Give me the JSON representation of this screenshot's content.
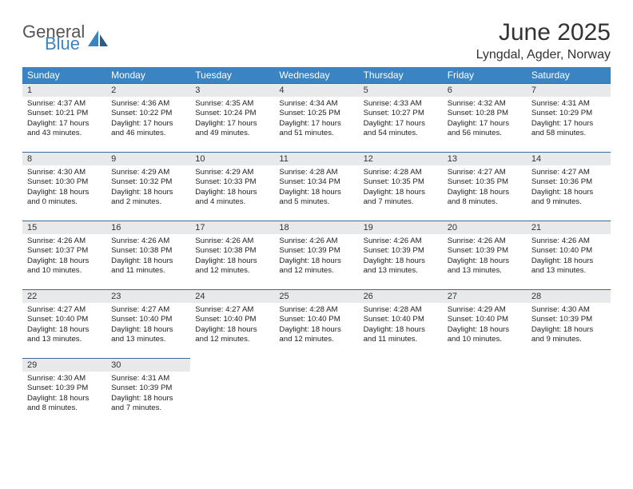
{
  "logo": {
    "text1": "General",
    "text2": "Blue",
    "color_general": "#555555",
    "color_blue": "#3a84c3"
  },
  "title": "June 2025",
  "location": "Lyngdal, Agder, Norway",
  "weekdays": [
    "Sunday",
    "Monday",
    "Tuesday",
    "Wednesday",
    "Thursday",
    "Friday",
    "Saturday"
  ],
  "colors": {
    "header_bg": "#3a84c3",
    "header_fg": "#ffffff",
    "daynum_bg": "#e7e9ea",
    "daynum_border": "#3a6a99",
    "text": "#222222"
  },
  "fonts": {
    "title_pt": 30,
    "location_pt": 16,
    "weekday_pt": 12,
    "daynum_pt": 11,
    "body_pt": 9.6
  },
  "days": [
    {
      "n": 1,
      "sunrise": "4:37 AM",
      "sunset": "10:21 PM",
      "daylight": "17 hours and 43 minutes."
    },
    {
      "n": 2,
      "sunrise": "4:36 AM",
      "sunset": "10:22 PM",
      "daylight": "17 hours and 46 minutes."
    },
    {
      "n": 3,
      "sunrise": "4:35 AM",
      "sunset": "10:24 PM",
      "daylight": "17 hours and 49 minutes."
    },
    {
      "n": 4,
      "sunrise": "4:34 AM",
      "sunset": "10:25 PM",
      "daylight": "17 hours and 51 minutes."
    },
    {
      "n": 5,
      "sunrise": "4:33 AM",
      "sunset": "10:27 PM",
      "daylight": "17 hours and 54 minutes."
    },
    {
      "n": 6,
      "sunrise": "4:32 AM",
      "sunset": "10:28 PM",
      "daylight": "17 hours and 56 minutes."
    },
    {
      "n": 7,
      "sunrise": "4:31 AM",
      "sunset": "10:29 PM",
      "daylight": "17 hours and 58 minutes."
    },
    {
      "n": 8,
      "sunrise": "4:30 AM",
      "sunset": "10:30 PM",
      "daylight": "18 hours and 0 minutes."
    },
    {
      "n": 9,
      "sunrise": "4:29 AM",
      "sunset": "10:32 PM",
      "daylight": "18 hours and 2 minutes."
    },
    {
      "n": 10,
      "sunrise": "4:29 AM",
      "sunset": "10:33 PM",
      "daylight": "18 hours and 4 minutes."
    },
    {
      "n": 11,
      "sunrise": "4:28 AM",
      "sunset": "10:34 PM",
      "daylight": "18 hours and 5 minutes."
    },
    {
      "n": 12,
      "sunrise": "4:28 AM",
      "sunset": "10:35 PM",
      "daylight": "18 hours and 7 minutes."
    },
    {
      "n": 13,
      "sunrise": "4:27 AM",
      "sunset": "10:35 PM",
      "daylight": "18 hours and 8 minutes."
    },
    {
      "n": 14,
      "sunrise": "4:27 AM",
      "sunset": "10:36 PM",
      "daylight": "18 hours and 9 minutes."
    },
    {
      "n": 15,
      "sunrise": "4:26 AM",
      "sunset": "10:37 PM",
      "daylight": "18 hours and 10 minutes."
    },
    {
      "n": 16,
      "sunrise": "4:26 AM",
      "sunset": "10:38 PM",
      "daylight": "18 hours and 11 minutes."
    },
    {
      "n": 17,
      "sunrise": "4:26 AM",
      "sunset": "10:38 PM",
      "daylight": "18 hours and 12 minutes."
    },
    {
      "n": 18,
      "sunrise": "4:26 AM",
      "sunset": "10:39 PM",
      "daylight": "18 hours and 12 minutes."
    },
    {
      "n": 19,
      "sunrise": "4:26 AM",
      "sunset": "10:39 PM",
      "daylight": "18 hours and 13 minutes."
    },
    {
      "n": 20,
      "sunrise": "4:26 AM",
      "sunset": "10:39 PM",
      "daylight": "18 hours and 13 minutes."
    },
    {
      "n": 21,
      "sunrise": "4:26 AM",
      "sunset": "10:40 PM",
      "daylight": "18 hours and 13 minutes."
    },
    {
      "n": 22,
      "sunrise": "4:27 AM",
      "sunset": "10:40 PM",
      "daylight": "18 hours and 13 minutes."
    },
    {
      "n": 23,
      "sunrise": "4:27 AM",
      "sunset": "10:40 PM",
      "daylight": "18 hours and 13 minutes."
    },
    {
      "n": 24,
      "sunrise": "4:27 AM",
      "sunset": "10:40 PM",
      "daylight": "18 hours and 12 minutes."
    },
    {
      "n": 25,
      "sunrise": "4:28 AM",
      "sunset": "10:40 PM",
      "daylight": "18 hours and 12 minutes."
    },
    {
      "n": 26,
      "sunrise": "4:28 AM",
      "sunset": "10:40 PM",
      "daylight": "18 hours and 11 minutes."
    },
    {
      "n": 27,
      "sunrise": "4:29 AM",
      "sunset": "10:40 PM",
      "daylight": "18 hours and 10 minutes."
    },
    {
      "n": 28,
      "sunrise": "4:30 AM",
      "sunset": "10:39 PM",
      "daylight": "18 hours and 9 minutes."
    },
    {
      "n": 29,
      "sunrise": "4:30 AM",
      "sunset": "10:39 PM",
      "daylight": "18 hours and 8 minutes."
    },
    {
      "n": 30,
      "sunrise": "4:31 AM",
      "sunset": "10:39 PM",
      "daylight": "18 hours and 7 minutes."
    }
  ],
  "labels": {
    "sunrise": "Sunrise:",
    "sunset": "Sunset:",
    "daylight": "Daylight:"
  },
  "start_weekday": 0,
  "num_days": 30
}
